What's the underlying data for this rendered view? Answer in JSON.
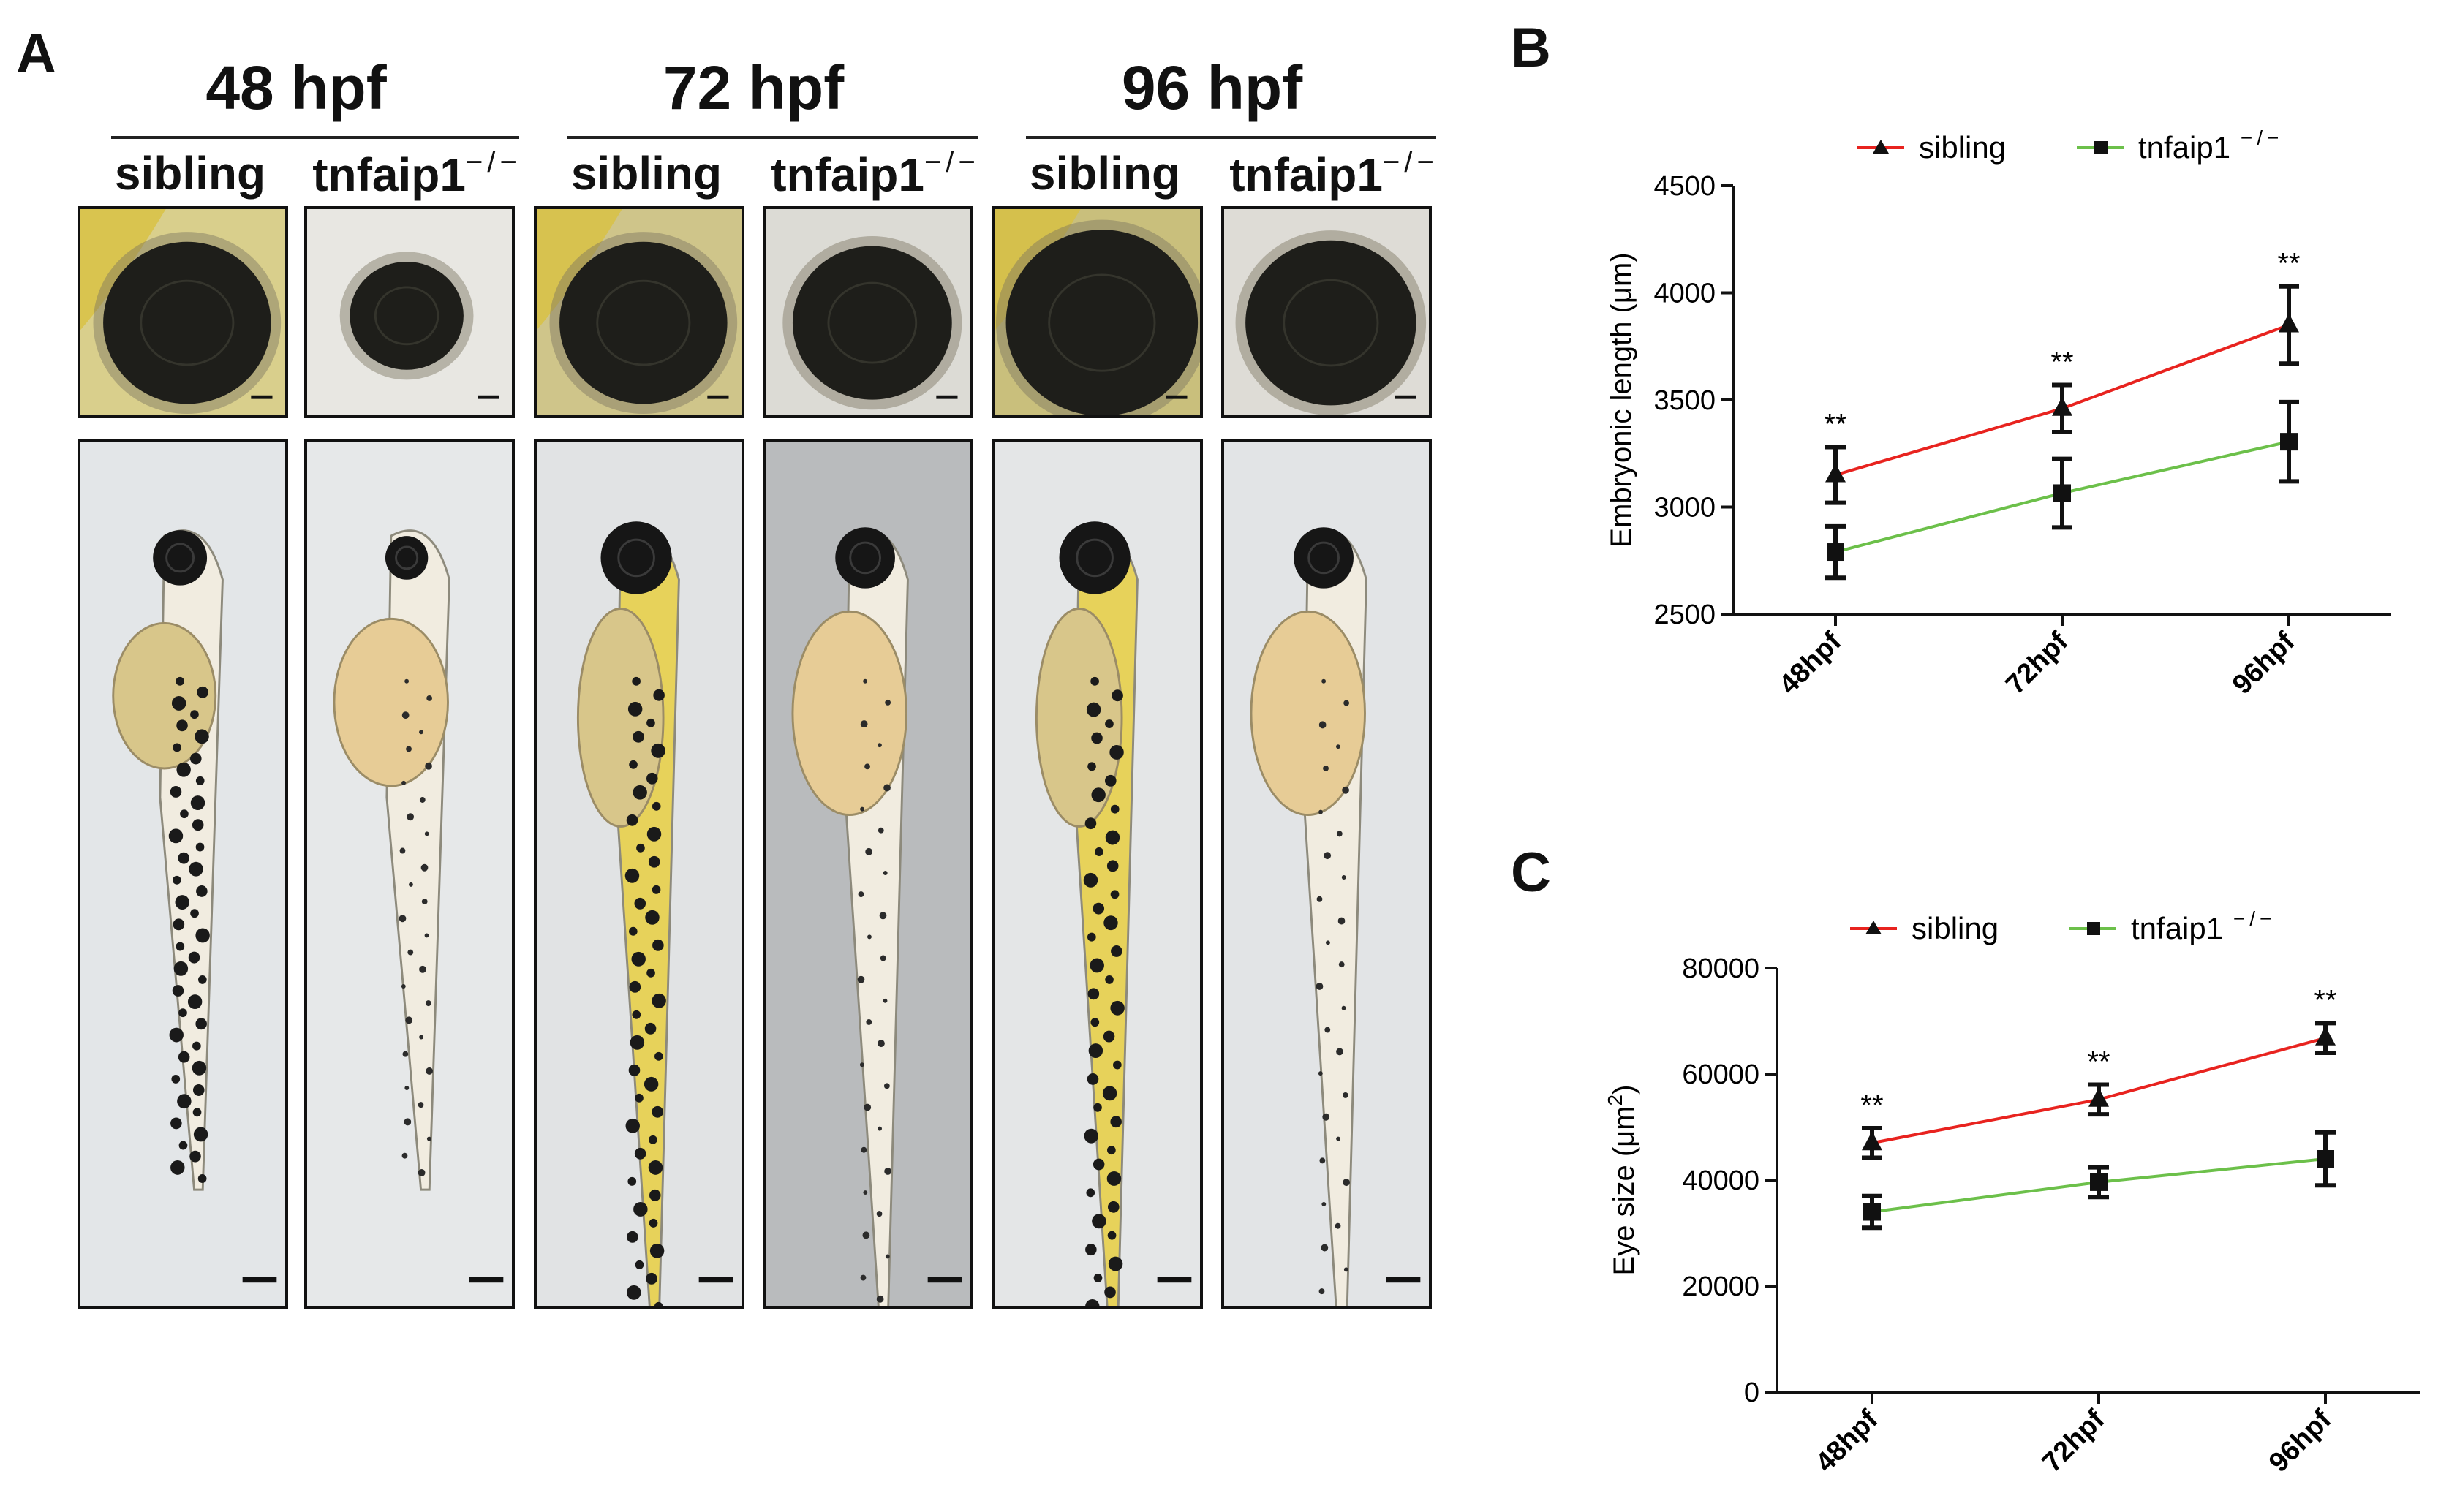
{
  "panel_a": {
    "letter": "A",
    "timepoints": [
      "48 hpf",
      "72 hpf",
      "96 hpf"
    ],
    "genotype_sibling": "sibling",
    "genotype_mutant": "tnfaip1",
    "mutant_superscript": "−/−"
  },
  "panel_b": {
    "letter": "B"
  },
  "panel_c": {
    "letter": "C"
  },
  "chart_data": [
    {
      "type": "line",
      "panel": "B",
      "title": "",
      "xlabel": "",
      "ylabel": "Embryonic length (μm)",
      "categories": [
        "48hpf",
        "72hpf",
        "96hpf"
      ],
      "ylim": [
        2500,
        4500
      ],
      "yticks": [
        "2500",
        "3000",
        "3500",
        "4000",
        "4500"
      ],
      "legend_placement": "top",
      "significance": [
        "**",
        "**",
        "**"
      ],
      "series": [
        {
          "name": "sibling",
          "marker": "triangle",
          "color": "#e8231f",
          "values": [
            3150,
            3460,
            3850
          ],
          "errors": [
            130,
            110,
            180
          ]
        },
        {
          "name": "tnfaip1",
          "name_superscript": "−/−",
          "marker": "square",
          "color": "#6cc04a",
          "values": [
            2790,
            3065,
            3305
          ],
          "errors": [
            120,
            160,
            185
          ]
        }
      ]
    },
    {
      "type": "line",
      "panel": "C",
      "title": "",
      "xlabel": "",
      "ylabel": "Eye size (μm",
      "ylabel_superscript": "2",
      "ylabel_suffix": ")",
      "categories": [
        "48hpf",
        "72hpf",
        "96hpf"
      ],
      "ylim": [
        0,
        80000
      ],
      "yticks": [
        "0",
        "20000",
        "40000",
        "60000",
        "80000"
      ],
      "legend_placement": "top",
      "significance": [
        "**",
        "**",
        "**"
      ],
      "series": [
        {
          "name": "sibling",
          "marker": "triangle",
          "color": "#e8231f",
          "values": [
            47000,
            55200,
            66800
          ],
          "errors": [
            2800,
            2800,
            2800
          ]
        },
        {
          "name": "tnfaip1",
          "name_superscript": "−/−",
          "marker": "square",
          "color": "#6cc04a",
          "values": [
            34000,
            39600,
            44000
          ],
          "errors": [
            3000,
            2800,
            5000
          ]
        }
      ]
    }
  ]
}
